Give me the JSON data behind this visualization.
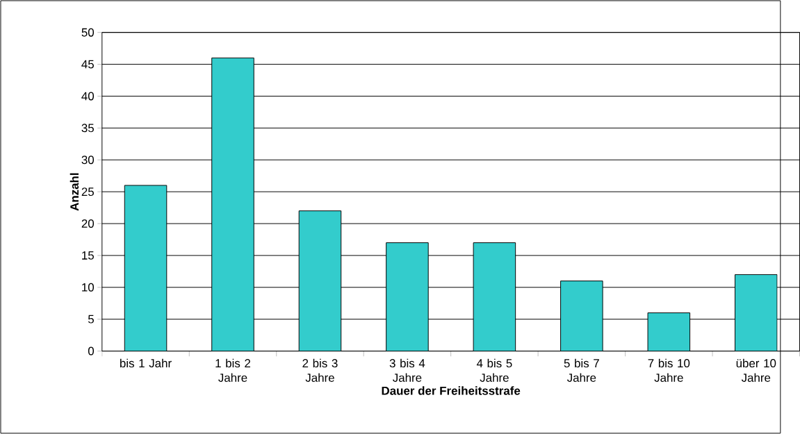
{
  "chart_data": {
    "type": "bar",
    "categories": [
      "bis 1 Jahr",
      "1 bis 2 Jahre",
      "2 bis 3 Jahre",
      "3 bis 4 Jahre",
      "4 bis 5 Jahre",
      "5 bis 7 Jahre",
      "7 bis 10 Jahre",
      "über 10 Jahre"
    ],
    "values": [
      26,
      46,
      22,
      17,
      17,
      11,
      6,
      12
    ],
    "color": "#33cccc",
    "xlabel": "Dauer der Freiheitsstrafe",
    "ylabel": "Anzahl",
    "ylim": [
      0,
      50
    ],
    "yticks": [
      0,
      5,
      10,
      15,
      20,
      25,
      30,
      35,
      40,
      45,
      50
    ],
    "grid": "y"
  }
}
